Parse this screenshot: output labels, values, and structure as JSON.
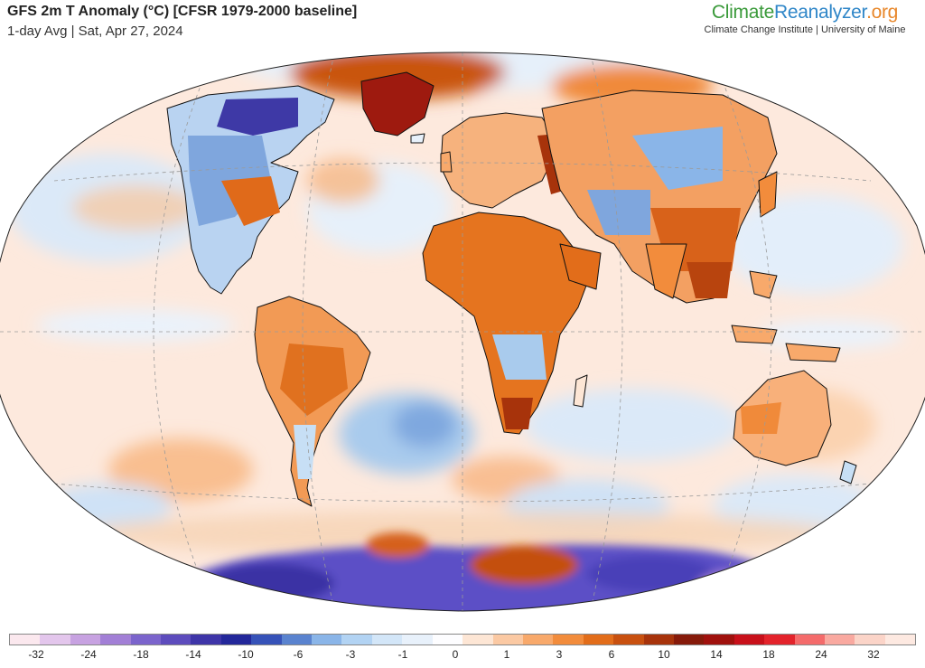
{
  "header": {
    "title": "GFS 2m T Anomaly (°C) [CFSR 1979-2000 baseline]",
    "subtitle": "1-day Avg | Sat, Apr 27, 2024"
  },
  "brand": {
    "name_part1": "Climate",
    "name_part2": "Reanalyzer",
    "name_part3": ".org",
    "subtitle": "Climate Change Institute | University of Maine"
  },
  "map": {
    "projection": "winkel-tripel-like",
    "ocean_base_color": "#fde9dd",
    "graticule_color": "#9a9a9a",
    "land_outline_color": "#111111"
  },
  "legend": {
    "colors": [
      "#fbe8ee",
      "#e3c6ec",
      "#c7a2e1",
      "#a27fd6",
      "#7b64cc",
      "#5d4cbd",
      "#3e35a8",
      "#23279a",
      "#3652b8",
      "#5a83cf",
      "#8ab5e8",
      "#b2d3f3",
      "#d3e6f8",
      "#e8f1fb",
      "#fdfdff",
      "#fde6d5",
      "#fbc9a3",
      "#f8a96b",
      "#f28c3c",
      "#e26d1a",
      "#c8500f",
      "#a7330b",
      "#861a0a",
      "#a0110d",
      "#c8101a",
      "#e3232b",
      "#f46b6b",
      "#f9a9a0",
      "#fbd4c8",
      "#fde9e1"
    ],
    "labels": [
      "-32",
      "-24",
      "-18",
      "-14",
      "-10",
      "-6",
      "-3",
      "-1",
      "0",
      "1",
      "3",
      "6",
      "10",
      "14",
      "18",
      "24",
      "32"
    ]
  }
}
